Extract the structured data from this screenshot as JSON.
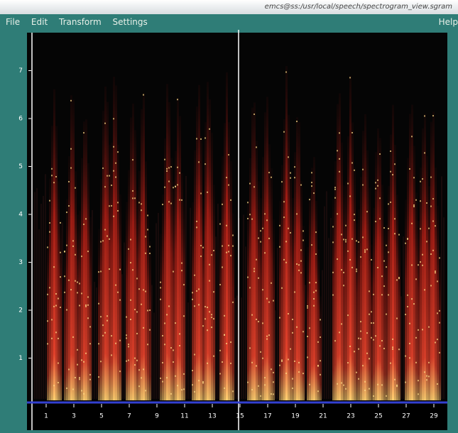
{
  "window": {
    "title": "emcs@ss:/usr/local/speech/spectrogram_view.sgram"
  },
  "menu": {
    "items": [
      "File",
      "Edit",
      "Transform",
      "Settings"
    ],
    "help": "Help"
  },
  "plot": {
    "yticks": [
      1,
      2,
      3,
      4,
      5,
      6,
      7
    ],
    "xticks": [
      1,
      3,
      5,
      7,
      9,
      11,
      13,
      15,
      17,
      19,
      21,
      23,
      25,
      27,
      29
    ]
  }
}
